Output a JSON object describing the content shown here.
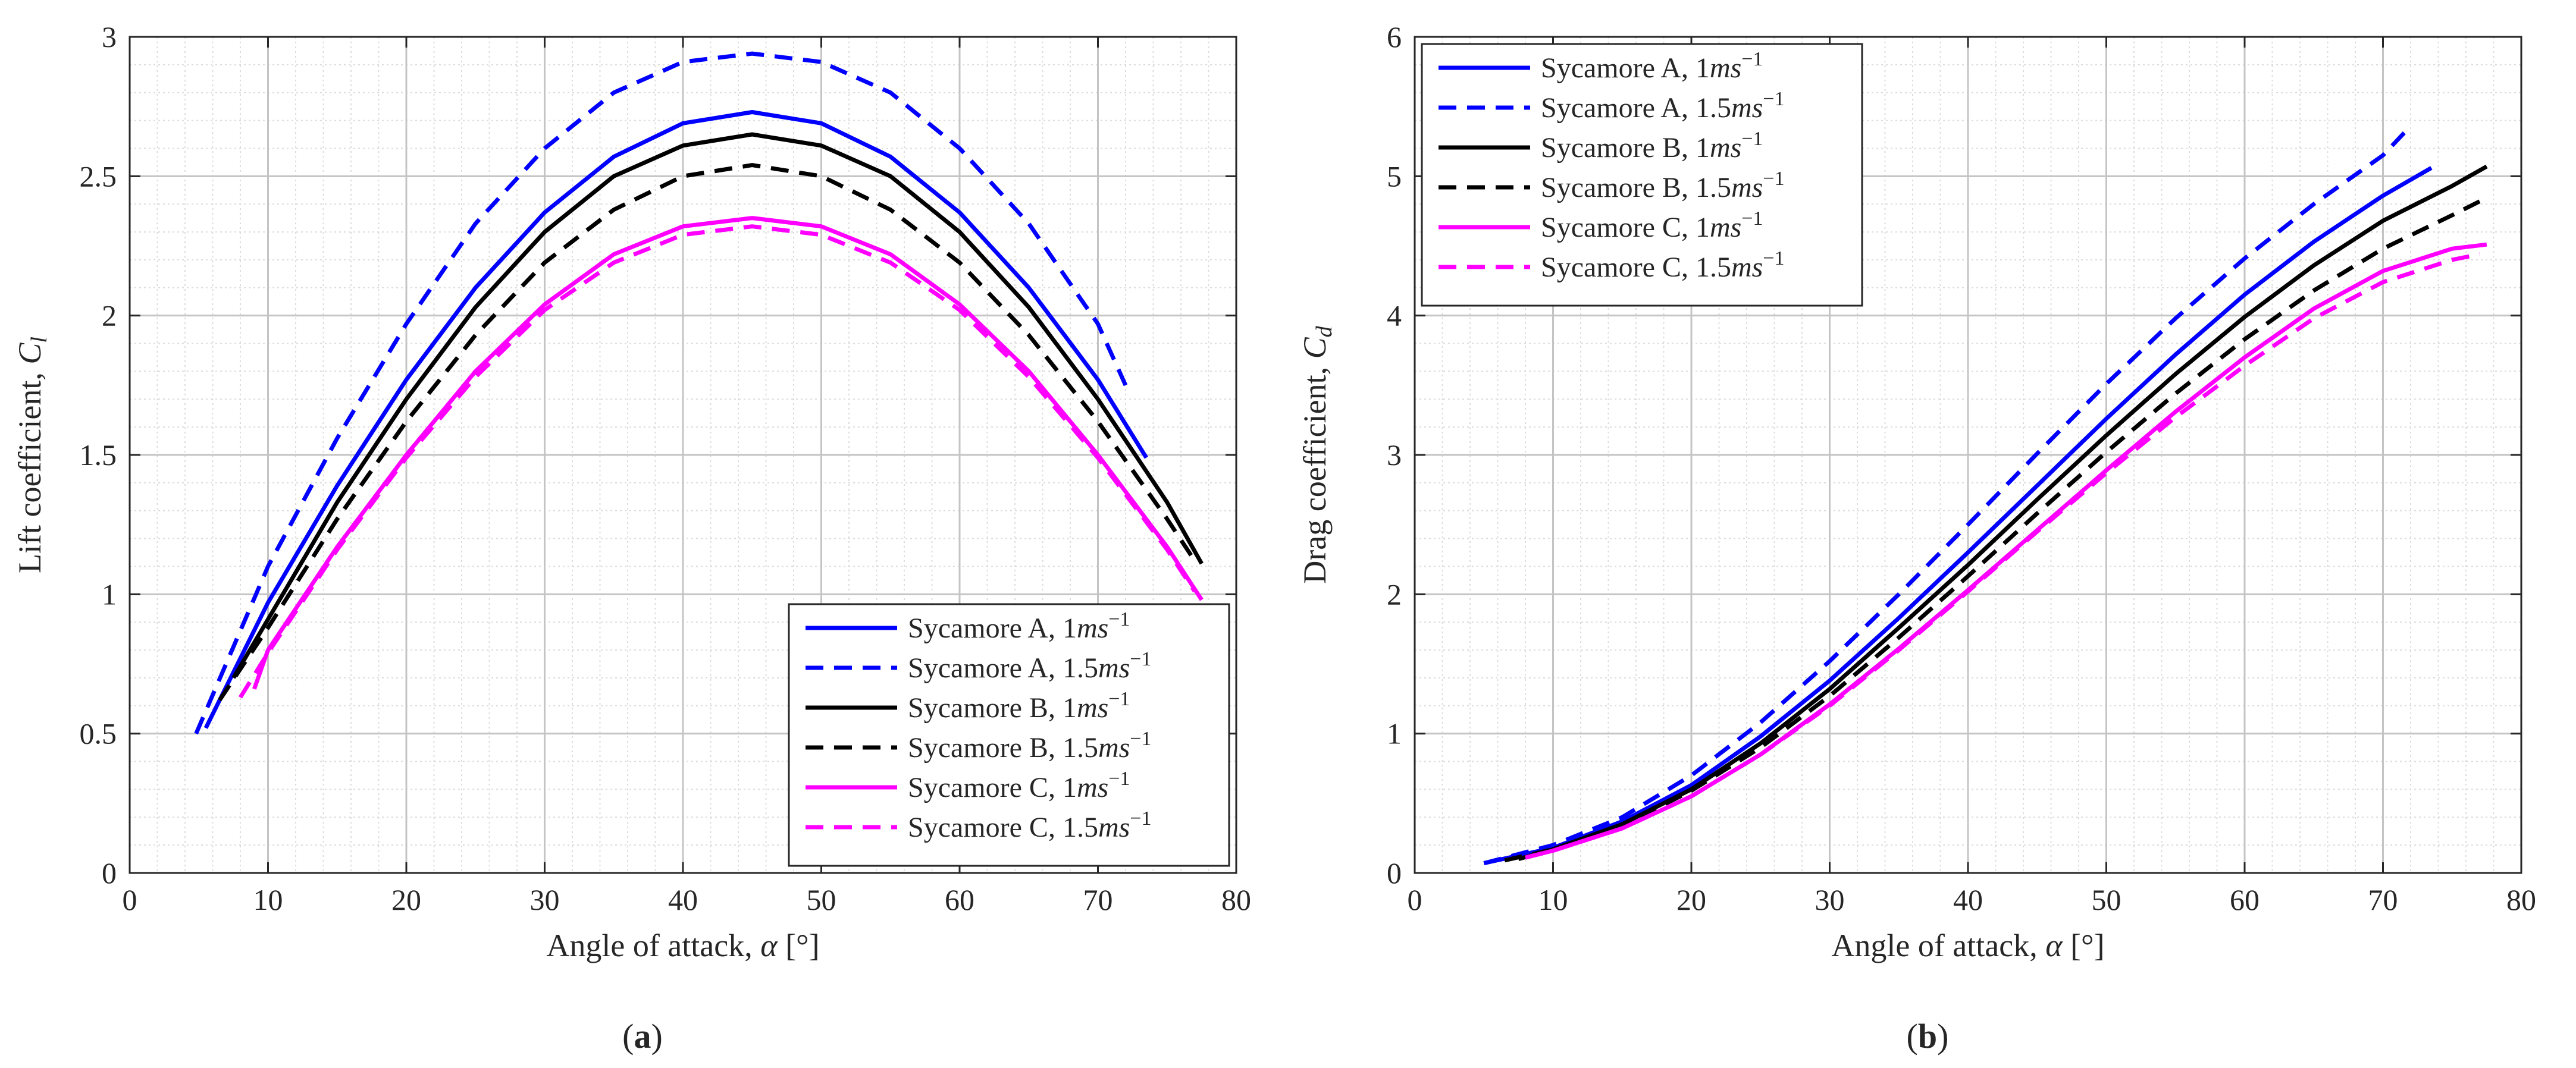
{
  "figure": {
    "panels": [
      {
        "label_open": "(",
        "label_letter": "a",
        "label_close": ")"
      },
      {
        "label_open": "(",
        "label_letter": "b",
        "label_close": ")"
      }
    ]
  },
  "legend_entries": [
    {
      "name": "Sycamore A",
      "speed": "1",
      "unit_base": "ms",
      "unit_exp": "−1"
    },
    {
      "name": "Sycamore A",
      "speed": "1.5",
      "unit_base": "ms",
      "unit_exp": "−1"
    },
    {
      "name": "Sycamore B",
      "speed": "1",
      "unit_base": "ms",
      "unit_exp": "−1"
    },
    {
      "name": "Sycamore B",
      "speed": "1.5",
      "unit_base": "ms",
      "unit_exp": "−1"
    },
    {
      "name": "Sycamore C",
      "speed": "1",
      "unit_base": "ms",
      "unit_exp": "−1"
    },
    {
      "name": "Sycamore C",
      "speed": "1.5",
      "unit_base": "ms",
      "unit_exp": "−1"
    }
  ],
  "chart_data": [
    {
      "type": "line",
      "title": "",
      "xlabel": {
        "text": "Angle of attack, ",
        "symbol": "α",
        "unit": " [°]"
      },
      "ylabel": {
        "text": "Lift coefficient, ",
        "symbol": "C",
        "sub": "l"
      },
      "xlim": [
        0,
        80
      ],
      "ylim": [
        0,
        3
      ],
      "xticks": [
        "0",
        "10",
        "20",
        "30",
        "40",
        "50",
        "60",
        "70",
        "80"
      ],
      "yticks": [
        "0",
        "0.5",
        "1",
        "1.5",
        "2",
        "2.5",
        "3"
      ],
      "grid": true,
      "minor_grid": true,
      "legend_position": "bottom-right",
      "series": [
        {
          "name": "Sycamore A, 1ms−1",
          "color": "#0000ff",
          "dash": "solid",
          "x": [
            5.5,
            10,
            15,
            20,
            25,
            30,
            35,
            40,
            45,
            50,
            55,
            60,
            65,
            70,
            73.5
          ],
          "y": [
            0.52,
            0.97,
            1.39,
            1.77,
            2.1,
            2.37,
            2.57,
            2.69,
            2.73,
            2.69,
            2.57,
            2.37,
            2.1,
            1.77,
            1.49
          ]
        },
        {
          "name": "Sycamore A, 1.5ms−1",
          "color": "#0000ff",
          "dash": "dashed",
          "x": [
            4.8,
            10,
            15,
            20,
            25,
            30,
            35,
            40,
            45,
            50,
            55,
            60,
            65,
            70,
            72
          ],
          "y": [
            0.5,
            1.1,
            1.56,
            1.97,
            2.33,
            2.6,
            2.8,
            2.91,
            2.94,
            2.91,
            2.8,
            2.6,
            2.33,
            1.97,
            1.75
          ]
        },
        {
          "name": "Sycamore B, 1ms−1",
          "color": "#000000",
          "dash": "solid",
          "x": [
            7.5,
            10,
            15,
            20,
            25,
            30,
            35,
            40,
            45,
            50,
            55,
            60,
            65,
            70,
            75,
            77.5
          ],
          "y": [
            0.7,
            0.91,
            1.33,
            1.7,
            2.03,
            2.3,
            2.5,
            2.61,
            2.65,
            2.61,
            2.5,
            2.3,
            2.03,
            1.7,
            1.33,
            1.11
          ]
        },
        {
          "name": "Sycamore B, 1.5ms−1",
          "color": "#000000",
          "dash": "dashed",
          "x": [
            6.5,
            10,
            15,
            20,
            25,
            30,
            35,
            40,
            45,
            50,
            55,
            60,
            65,
            70,
            75,
            77
          ],
          "y": [
            0.62,
            0.88,
            1.27,
            1.62,
            1.93,
            2.19,
            2.38,
            2.5,
            2.54,
            2.5,
            2.38,
            2.19,
            1.93,
            1.62,
            1.27,
            1.12
          ]
        },
        {
          "name": "Sycamore C, 1ms−1",
          "color": "#ff00ff",
          "dash": "solid",
          "x": [
            9,
            10,
            15,
            20,
            25,
            30,
            35,
            40,
            45,
            50,
            55,
            60,
            65,
            70,
            75,
            77.5
          ],
          "y": [
            0.66,
            0.8,
            1.17,
            1.5,
            1.8,
            2.04,
            2.22,
            2.32,
            2.35,
            2.32,
            2.22,
            2.04,
            1.8,
            1.5,
            1.17,
            0.98
          ]
        },
        {
          "name": "Sycamore C, 1.5ms−1",
          "color": "#ff00ff",
          "dash": "dashed",
          "x": [
            8,
            10,
            15,
            20,
            25,
            30,
            35,
            40,
            45,
            50,
            55,
            60,
            65,
            70,
            75,
            77
          ],
          "y": [
            0.63,
            0.79,
            1.16,
            1.49,
            1.78,
            2.02,
            2.19,
            2.29,
            2.32,
            2.29,
            2.19,
            2.02,
            1.78,
            1.49,
            1.16,
            1.01
          ]
        }
      ]
    },
    {
      "type": "line",
      "title": "",
      "xlabel": {
        "text": "Angle of attack, ",
        "symbol": "α",
        "unit": " [°]"
      },
      "ylabel": {
        "text": "Drag coefficient, ",
        "symbol": "C",
        "sub": "d"
      },
      "xlim": [
        0,
        80
      ],
      "ylim": [
        0,
        6
      ],
      "xticks": [
        "0",
        "10",
        "20",
        "30",
        "40",
        "50",
        "60",
        "70",
        "80"
      ],
      "yticks": [
        "0",
        "1",
        "2",
        "3",
        "4",
        "5",
        "6"
      ],
      "grid": true,
      "minor_grid": true,
      "legend_position": "top-left",
      "series": [
        {
          "name": "Sycamore A, 1ms−1",
          "color": "#0000ff",
          "dash": "solid",
          "x": [
            5,
            10,
            15,
            20,
            25,
            30,
            35,
            40,
            45,
            50,
            55,
            60,
            65,
            70,
            73.5
          ],
          "y": [
            0.07,
            0.18,
            0.37,
            0.63,
            0.98,
            1.38,
            1.83,
            2.3,
            2.78,
            3.26,
            3.72,
            4.15,
            4.53,
            4.86,
            5.06
          ]
        },
        {
          "name": "Sycamore A, 1.5ms−1",
          "color": "#0000ff",
          "dash": "dashed",
          "x": [
            5,
            10,
            15,
            20,
            25,
            30,
            35,
            40,
            45,
            50,
            55,
            60,
            65,
            70,
            72
          ],
          "y": [
            0.07,
            0.2,
            0.4,
            0.7,
            1.08,
            1.52,
            2.0,
            2.5,
            3.01,
            3.51,
            3.98,
            4.41,
            4.8,
            5.15,
            5.36
          ]
        },
        {
          "name": "Sycamore B, 1ms−1",
          "color": "#000000",
          "dash": "solid",
          "x": [
            7.5,
            10,
            15,
            20,
            25,
            30,
            35,
            40,
            45,
            50,
            55,
            60,
            65,
            70,
            75,
            77.5
          ],
          "y": [
            0.1,
            0.17,
            0.35,
            0.6,
            0.93,
            1.32,
            1.76,
            2.21,
            2.68,
            3.14,
            3.58,
            3.99,
            4.36,
            4.68,
            4.93,
            5.07
          ]
        },
        {
          "name": "Sycamore B, 1.5ms−1",
          "color": "#000000",
          "dash": "dashed",
          "x": [
            6.5,
            10,
            15,
            20,
            25,
            30,
            35,
            40,
            45,
            50,
            55,
            60,
            65,
            70,
            75,
            77
          ],
          "y": [
            0.09,
            0.17,
            0.34,
            0.59,
            0.9,
            1.27,
            1.69,
            2.13,
            2.58,
            3.02,
            3.44,
            3.83,
            4.18,
            4.48,
            4.72,
            4.82
          ]
        },
        {
          "name": "Sycamore C, 1ms−1",
          "color": "#ff00ff",
          "dash": "solid",
          "x": [
            8,
            10,
            15,
            20,
            25,
            30,
            35,
            40,
            45,
            50,
            55,
            60,
            65,
            70,
            75,
            77.5
          ],
          "y": [
            0.11,
            0.16,
            0.32,
            0.55,
            0.85,
            1.21,
            1.61,
            2.03,
            2.46,
            2.89,
            3.31,
            3.7,
            4.05,
            4.32,
            4.48,
            4.51
          ]
        },
        {
          "name": "Sycamore C, 1.5ms−1",
          "color": "#ff00ff",
          "dash": "dashed",
          "x": [
            8,
            10,
            15,
            20,
            25,
            30,
            35,
            40,
            45,
            50,
            55,
            60,
            65,
            70,
            75,
            77
          ],
          "y": [
            0.11,
            0.16,
            0.32,
            0.55,
            0.85,
            1.2,
            1.6,
            2.02,
            2.45,
            2.87,
            3.27,
            3.64,
            3.98,
            4.24,
            4.4,
            4.44
          ]
        }
      ]
    }
  ]
}
